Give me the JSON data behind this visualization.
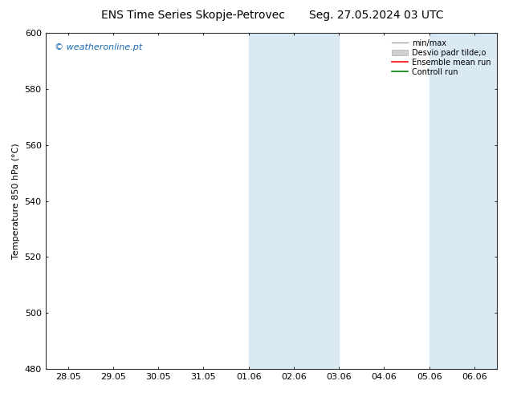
{
  "title_left": "ENS Time Series Skopje-Petrovec",
  "title_right": "Seg. 27.05.2024 03 UTC",
  "ylabel": "Temperature 850 hPa (°C)",
  "ylim": [
    480,
    600
  ],
  "yticks": [
    480,
    500,
    520,
    540,
    560,
    580,
    600
  ],
  "xtick_labels": [
    "28.05",
    "29.05",
    "30.05",
    "31.05",
    "01.06",
    "02.06",
    "03.06",
    "04.06",
    "05.06",
    "06.06"
  ],
  "xtick_positions": [
    0,
    1,
    2,
    3,
    4,
    5,
    6,
    7,
    8,
    9
  ],
  "shade_bands": [
    {
      "xmin": 4.0,
      "xmax": 6.0,
      "color": "#daeaf5"
    },
    {
      "xmin": 8.0,
      "xmax": 9.5,
      "color": "#daeaf5"
    }
  ],
  "background_color": "#ffffff",
  "plot_bg_color": "#ffffff",
  "watermark": "© weatheronline.pt",
  "watermark_color": "#1a6bb5",
  "legend_labels": [
    "min/max",
    "Desvio padr tilde;o",
    "Ensemble mean run",
    "Controll run"
  ],
  "legend_colors": [
    "#a0a0a0",
    "#c8c8c8",
    "#ff0000",
    "#008000"
  ],
  "border_color": "#333333",
  "tick_color": "#333333",
  "tick_label_color": "#000000",
  "font_size": 8,
  "title_font_size": 10,
  "xlim": [
    -0.5,
    9.5
  ]
}
